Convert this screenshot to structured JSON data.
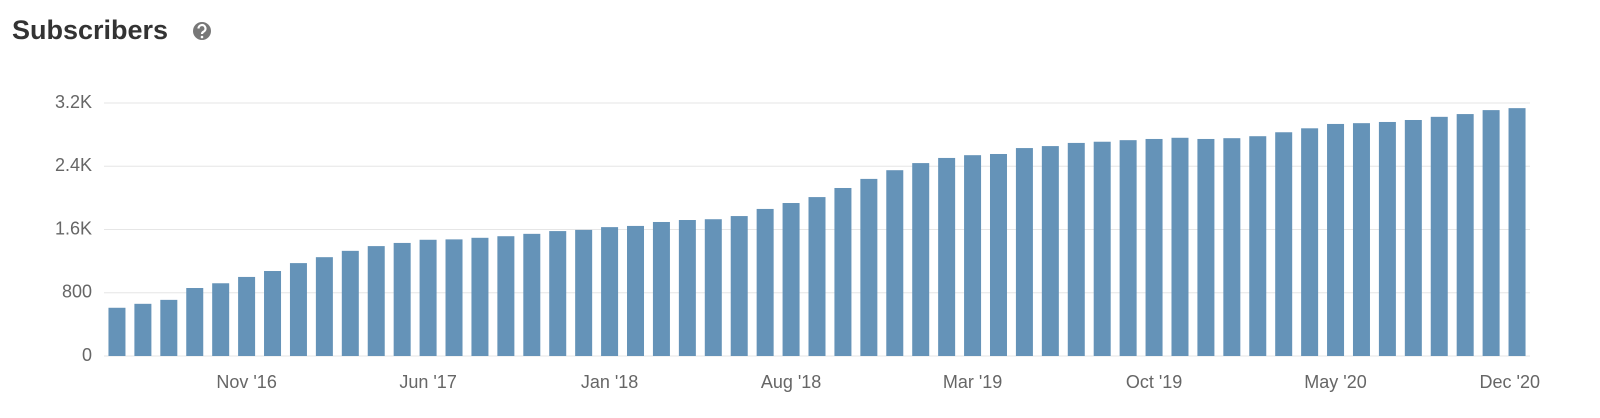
{
  "chart_data": {
    "type": "bar",
    "title": "Subscribers",
    "categories": [
      null,
      null,
      null,
      null,
      null,
      "Nov '16",
      null,
      null,
      null,
      null,
      null,
      null,
      "Jun '17",
      null,
      null,
      null,
      null,
      null,
      null,
      "Jan '18",
      null,
      null,
      null,
      null,
      null,
      null,
      "Aug '18",
      null,
      null,
      null,
      null,
      null,
      null,
      "Mar '19",
      null,
      null,
      null,
      null,
      null,
      null,
      "Oct '19",
      null,
      null,
      null,
      null,
      null,
      null,
      "May '20",
      null,
      null,
      null,
      null,
      null,
      null,
      "Dec '20"
    ],
    "values": [
      610,
      660,
      710,
      860,
      920,
      1000,
      1075,
      1175,
      1250,
      1330,
      1390,
      1430,
      1470,
      1475,
      1495,
      1515,
      1545,
      1580,
      1595,
      1630,
      1645,
      1695,
      1720,
      1730,
      1770,
      1860,
      1935,
      2010,
      2125,
      2240,
      2350,
      2440,
      2505,
      2540,
      2555,
      2630,
      2655,
      2695,
      2710,
      2730,
      2745,
      2760,
      2745,
      2755,
      2780,
      2830,
      2880,
      2935,
      2945,
      2960,
      2985,
      3025,
      3060,
      3110,
      3135
    ],
    "color": "#6593b8",
    "ylim": [
      0,
      3200
    ],
    "yticks": [
      0,
      800,
      {
        "value": 1600,
        "label": "1.6K"
      },
      {
        "value": 2400,
        "label": "2.4K"
      },
      {
        "value": 3200,
        "label": "3.2K"
      }
    ],
    "grid": true
  }
}
